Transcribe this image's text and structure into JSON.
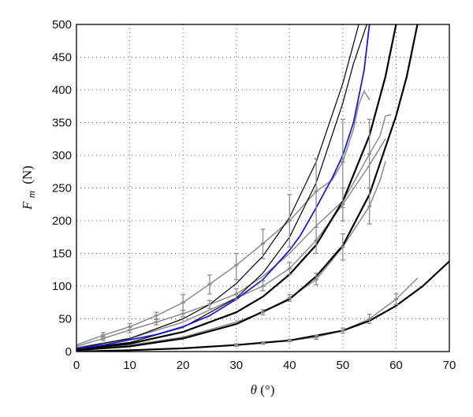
{
  "chart_data": {
    "type": "line",
    "title": "",
    "xlabel_symbol": "θ",
    "xlabel_unit": "(°)",
    "ylabel_symbol": "F",
    "ylabel_subscript": "m",
    "ylabel_unit": "(N)",
    "xlim": [
      0,
      70
    ],
    "ylim": [
      0,
      500
    ],
    "xticks": [
      0,
      10,
      20,
      30,
      40,
      50,
      60,
      70
    ],
    "yticks": [
      0,
      50,
      100,
      150,
      200,
      250,
      300,
      350,
      400,
      450,
      500
    ],
    "grid": "dotted",
    "legend": "none",
    "colors": {
      "black": "#000000",
      "gray": "#8c8c8c",
      "blue": "#1c1cd6"
    },
    "series": [
      {
        "color": "black",
        "width": 1.2,
        "points": [
          [
            0,
            5
          ],
          [
            10,
            20
          ],
          [
            20,
            50
          ],
          [
            25,
            72
          ],
          [
            30,
            104
          ],
          [
            35,
            146
          ],
          [
            40,
            205
          ],
          [
            45,
            290
          ],
          [
            50,
            410
          ],
          [
            53,
            500
          ]
        ]
      },
      {
        "color": "black",
        "width": 1.2,
        "points": [
          [
            0,
            4
          ],
          [
            10,
            14
          ],
          [
            20,
            37
          ],
          [
            30,
            82
          ],
          [
            35,
            120
          ],
          [
            40,
            175
          ],
          [
            45,
            258
          ],
          [
            50,
            380
          ],
          [
            52,
            440
          ],
          [
            54.5,
            500
          ]
        ]
      },
      {
        "color": "black",
        "width": 2.2,
        "points": [
          [
            0,
            3
          ],
          [
            10,
            12
          ],
          [
            20,
            30
          ],
          [
            30,
            60
          ],
          [
            35,
            84
          ],
          [
            40,
            118
          ],
          [
            45,
            163
          ],
          [
            50,
            230
          ],
          [
            55,
            330
          ],
          [
            58,
            420
          ],
          [
            60,
            500
          ]
        ]
      },
      {
        "color": "black",
        "width": 2.2,
        "points": [
          [
            0,
            2
          ],
          [
            10,
            8
          ],
          [
            20,
            20
          ],
          [
            30,
            42
          ],
          [
            40,
            80
          ],
          [
            45,
            115
          ],
          [
            50,
            162
          ],
          [
            55,
            240
          ],
          [
            60,
            360
          ],
          [
            62,
            420
          ],
          [
            64,
            500
          ]
        ]
      },
      {
        "color": "black",
        "width": 2.2,
        "points": [
          [
            0,
            0
          ],
          [
            10,
            2
          ],
          [
            20,
            5
          ],
          [
            30,
            10
          ],
          [
            40,
            17
          ],
          [
            50,
            32
          ],
          [
            55,
            47
          ],
          [
            60,
            70
          ],
          [
            65,
            100
          ],
          [
            70,
            138
          ]
        ]
      },
      {
        "color": "blue",
        "width": 1.8,
        "points": [
          [
            0,
            5
          ],
          [
            5,
            10
          ],
          [
            10,
            18
          ],
          [
            15,
            26
          ],
          [
            20,
            38
          ],
          [
            25,
            55
          ],
          [
            30,
            80
          ],
          [
            35,
            110
          ],
          [
            40,
            155
          ],
          [
            42,
            177
          ],
          [
            45,
            220
          ],
          [
            48,
            265
          ],
          [
            50,
            300
          ],
          [
            52,
            350
          ],
          [
            54,
            430
          ],
          [
            55,
            500
          ]
        ]
      },
      {
        "color": "gray",
        "width": 1.5,
        "points": [
          [
            0,
            10
          ],
          [
            5,
            25
          ],
          [
            10,
            38
          ],
          [
            15,
            55
          ],
          [
            20,
            75
          ],
          [
            25,
            103
          ],
          [
            30,
            132
          ],
          [
            35,
            165
          ],
          [
            40,
            200
          ],
          [
            45,
            245
          ],
          [
            48,
            262
          ],
          [
            50,
            290
          ],
          [
            52,
            340
          ],
          [
            53,
            378
          ],
          [
            54,
            398
          ],
          [
            55,
            385
          ]
        ]
      },
      {
        "color": "gray",
        "width": 1.5,
        "points": [
          [
            0,
            8
          ],
          [
            5,
            20
          ],
          [
            10,
            33
          ],
          [
            15,
            45
          ],
          [
            20,
            58
          ],
          [
            25,
            72
          ],
          [
            30,
            88
          ],
          [
            35,
            115
          ],
          [
            40,
            150
          ],
          [
            45,
            192
          ],
          [
            50,
            230
          ],
          [
            52,
            258
          ],
          [
            55,
            302
          ],
          [
            57,
            330
          ],
          [
            58,
            360
          ],
          [
            59,
            362
          ]
        ]
      },
      {
        "color": "gray",
        "width": 1.5,
        "points": [
          [
            0,
            6
          ],
          [
            10,
            20
          ],
          [
            20,
            45
          ],
          [
            30,
            82
          ],
          [
            35,
            100
          ],
          [
            40,
            127
          ],
          [
            45,
            170
          ],
          [
            50,
            225
          ],
          [
            55,
            285
          ],
          [
            58,
            325
          ]
        ]
      },
      {
        "color": "gray",
        "width": 1.5,
        "points": [
          [
            0,
            3
          ],
          [
            10,
            10
          ],
          [
            20,
            22
          ],
          [
            30,
            45
          ],
          [
            35,
            60
          ],
          [
            40,
            82
          ],
          [
            45,
            110
          ],
          [
            50,
            160
          ],
          [
            55,
            222
          ],
          [
            57,
            262
          ],
          [
            58,
            290
          ]
        ]
      },
      {
        "color": "gray",
        "width": 1.5,
        "points": [
          [
            0,
            0
          ],
          [
            10,
            2
          ],
          [
            20,
            5
          ],
          [
            30,
            10
          ],
          [
            40,
            17
          ],
          [
            45,
            22
          ],
          [
            50,
            32
          ],
          [
            55,
            50
          ],
          [
            60,
            80
          ],
          [
            64,
            112
          ]
        ]
      }
    ],
    "error_bars": [
      {
        "x": 5,
        "y": 25,
        "low": 21,
        "high": 29
      },
      {
        "x": 10,
        "y": 38,
        "low": 33,
        "high": 43
      },
      {
        "x": 15,
        "y": 55,
        "low": 50,
        "high": 60
      },
      {
        "x": 20,
        "y": 75,
        "low": 63,
        "high": 87
      },
      {
        "x": 25,
        "y": 103,
        "low": 88,
        "high": 117
      },
      {
        "x": 30,
        "y": 132,
        "low": 110,
        "high": 150
      },
      {
        "x": 35,
        "y": 165,
        "low": 142,
        "high": 187
      },
      {
        "x": 40,
        "y": 200,
        "low": 160,
        "high": 240
      },
      {
        "x": 45,
        "y": 245,
        "low": 190,
        "high": 295
      },
      {
        "x": 50,
        "y": 290,
        "low": 220,
        "high": 355
      },
      {
        "x": 55,
        "y": 302,
        "low": 250,
        "high": 355
      },
      {
        "x": 5,
        "y": 20,
        "low": 17,
        "high": 23
      },
      {
        "x": 10,
        "y": 33,
        "low": 29,
        "high": 37
      },
      {
        "x": 15,
        "y": 45,
        "low": 41,
        "high": 49
      },
      {
        "x": 20,
        "y": 58,
        "low": 53,
        "high": 63
      },
      {
        "x": 25,
        "y": 72,
        "low": 66,
        "high": 78
      },
      {
        "x": 30,
        "y": 88,
        "low": 80,
        "high": 96
      },
      {
        "x": 35,
        "y": 100,
        "low": 93,
        "high": 108
      },
      {
        "x": 40,
        "y": 127,
        "low": 118,
        "high": 136
      },
      {
        "x": 45,
        "y": 170,
        "low": 150,
        "high": 190
      },
      {
        "x": 50,
        "y": 225,
        "low": 200,
        "high": 250
      },
      {
        "x": 35,
        "y": 60,
        "low": 56,
        "high": 64
      },
      {
        "x": 40,
        "y": 82,
        "low": 77,
        "high": 87
      },
      {
        "x": 45,
        "y": 110,
        "low": 102,
        "high": 120
      },
      {
        "x": 50,
        "y": 160,
        "low": 140,
        "high": 180
      },
      {
        "x": 55,
        "y": 222,
        "low": 195,
        "high": 250
      },
      {
        "x": 30,
        "y": 10,
        "low": 8,
        "high": 12
      },
      {
        "x": 35,
        "y": 13,
        "low": 11,
        "high": 15
      },
      {
        "x": 40,
        "y": 17,
        "low": 15,
        "high": 19
      },
      {
        "x": 45,
        "y": 22,
        "low": 19,
        "high": 25
      },
      {
        "x": 50,
        "y": 32,
        "low": 28,
        "high": 36
      },
      {
        "x": 55,
        "y": 50,
        "low": 43,
        "high": 57
      },
      {
        "x": 60,
        "y": 80,
        "low": 72,
        "high": 88
      }
    ]
  }
}
